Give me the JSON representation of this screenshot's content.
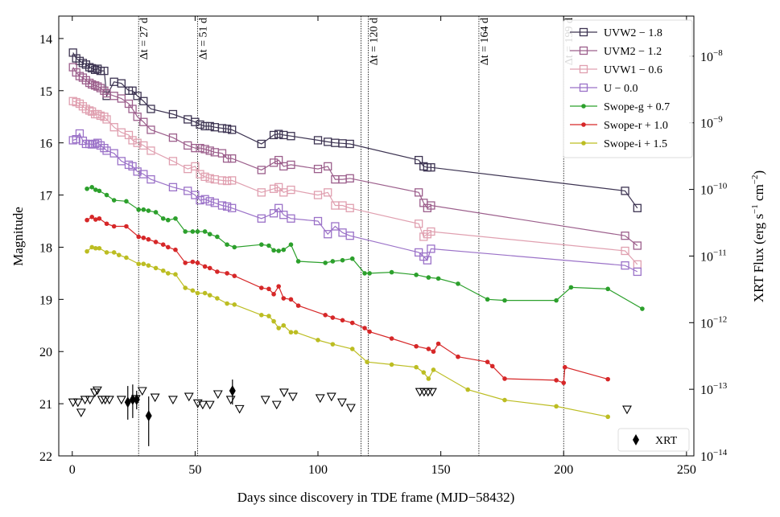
{
  "chart_data": {
    "type": "line",
    "x_label": "Days since discovery in TDE frame (MJD−58432)",
    "y_label": "Magnitude",
    "y2_label": "XRT Flux (erg s^−1 cm^−2)",
    "xlim": [
      -5.5,
      253
    ],
    "xticks": [
      0,
      50,
      100,
      150,
      200,
      250
    ],
    "ylim": [
      13.57,
      22
    ],
    "y_inverted": true,
    "yticks": [
      14,
      15,
      16,
      17,
      18,
      19,
      20,
      21,
      22
    ],
    "y2lim": [
      1e-14,
      4e-08
    ],
    "y2_log": true,
    "y2ticks": [
      {
        "value": 1e-08,
        "label": "10^−8"
      },
      {
        "value": 1e-09,
        "label": "10^−9"
      },
      {
        "value": 1e-10,
        "label": "10^−10"
      },
      {
        "value": 1e-11,
        "label": "10^−11"
      },
      {
        "value": 1e-12,
        "label": "10^−12"
      },
      {
        "value": 1e-13,
        "label": "10^−13"
      },
      {
        "value": 1e-14,
        "label": "10^−14"
      }
    ],
    "legend": "upper right",
    "vlines": [
      27,
      51,
      117.5,
      120.5,
      165.5,
      200
    ],
    "annotations": [
      {
        "x": 27,
        "text": "Δt = 27 d"
      },
      {
        "x": 51,
        "text": "Δt = 51 d"
      },
      {
        "x": 120.5,
        "text": "Δt = 120 d"
      },
      {
        "x": 165.5,
        "text": "Δt = 164 d"
      },
      {
        "x": 200,
        "text": "Δt = 199 d"
      }
    ],
    "series": [
      {
        "name": "UVW2 − 1.8",
        "color": "#3d3452",
        "marker": "square",
        "x": [
          0.3,
          1.6,
          3,
          4.3,
          5.6,
          7,
          8,
          9.3,
          10.3,
          11.5,
          13,
          14,
          17,
          20,
          23,
          24.5,
          26.5,
          29,
          32,
          41,
          47,
          50,
          52,
          54,
          56,
          58,
          61,
          63,
          65,
          77,
          82,
          84,
          86,
          89,
          100,
          104,
          107,
          110,
          113,
          141,
          143,
          144.5,
          146,
          225,
          230
        ],
        "values": [
          14.27,
          14.38,
          14.43,
          14.47,
          14.5,
          14.55,
          14.57,
          14.6,
          14.58,
          14.62,
          14.62,
          15.1,
          14.83,
          14.86,
          15.0,
          15.0,
          15.1,
          15.2,
          15.35,
          15.45,
          15.55,
          15.6,
          15.65,
          15.68,
          15.68,
          15.7,
          15.72,
          15.73,
          15.75,
          16.02,
          15.85,
          15.83,
          15.85,
          15.87,
          15.95,
          15.98,
          16.0,
          16.01,
          16.02,
          16.33,
          16.45,
          16.47,
          16.47,
          16.92,
          17.25
        ]
      },
      {
        "name": "UVM2 − 1.2",
        "color": "#9c5f8c",
        "marker": "square",
        "x": [
          0.3,
          1.6,
          3,
          4.3,
          5.6,
          7,
          8,
          9.3,
          10.3,
          11.5,
          13,
          14,
          17,
          20,
          23,
          24.5,
          26.5,
          29,
          32,
          41,
          47,
          50,
          52,
          54,
          56,
          58,
          61,
          63,
          65,
          77,
          82,
          84,
          86,
          89,
          100,
          104,
          107,
          110,
          113,
          141,
          143,
          144.5,
          146,
          225,
          230
        ],
        "values": [
          14.55,
          14.65,
          14.72,
          14.75,
          14.8,
          14.85,
          14.88,
          14.9,
          14.92,
          14.95,
          15.0,
          15.05,
          15.1,
          15.15,
          15.25,
          15.35,
          15.5,
          15.6,
          15.75,
          15.9,
          16.05,
          16.1,
          16.1,
          16.12,
          16.15,
          16.18,
          16.2,
          16.3,
          16.3,
          16.52,
          16.38,
          16.33,
          16.45,
          16.42,
          16.5,
          16.45,
          16.7,
          16.7,
          16.68,
          16.95,
          17.15,
          17.25,
          17.2,
          17.78,
          17.97
        ]
      },
      {
        "name": "UVW1 − 0.6",
        "color": "#e0a0b0",
        "marker": "square",
        "x": [
          0.3,
          1.6,
          3,
          4.3,
          5.6,
          7,
          8,
          9.3,
          10.3,
          11.5,
          13,
          14,
          17,
          20,
          23,
          24.5,
          26.5,
          29,
          32,
          41,
          47,
          50,
          52,
          54,
          56,
          58,
          61,
          63,
          65,
          77,
          82,
          84,
          86,
          89,
          100,
          104,
          107,
          110,
          113,
          141,
          143,
          144.5,
          146,
          225,
          230
        ],
        "values": [
          15.2,
          15.22,
          15.25,
          15.3,
          15.35,
          15.38,
          15.4,
          15.45,
          15.45,
          15.48,
          15.5,
          15.55,
          15.7,
          15.8,
          15.85,
          15.95,
          16.0,
          16.05,
          16.15,
          16.35,
          16.5,
          16.45,
          16.6,
          16.65,
          16.68,
          16.7,
          16.72,
          16.73,
          16.72,
          16.95,
          16.88,
          16.85,
          16.95,
          16.9,
          17.0,
          16.95,
          17.2,
          17.2,
          17.25,
          17.55,
          17.8,
          17.75,
          17.7,
          18.07,
          18.33
        ]
      },
      {
        "name": "U − 0.0",
        "color": "#9b72c8",
        "marker": "square",
        "x": [
          0.3,
          1.6,
          3,
          4.3,
          5.6,
          7,
          8,
          9.3,
          10.3,
          11.5,
          13,
          14,
          17,
          20,
          23,
          24.5,
          26.5,
          29,
          32,
          41,
          47,
          50,
          52,
          54,
          56,
          58,
          61,
          63,
          65,
          77,
          82,
          84,
          86,
          89,
          100,
          104,
          107,
          110,
          113,
          141,
          143,
          144.5,
          146,
          225,
          230
        ],
        "values": [
          15.95,
          15.93,
          15.82,
          15.96,
          16.02,
          16.02,
          16.03,
          16.02,
          16.0,
          16.05,
          16.1,
          16.15,
          16.2,
          16.35,
          16.42,
          16.45,
          16.55,
          16.6,
          16.7,
          16.85,
          16.92,
          17.0,
          17.1,
          17.08,
          17.12,
          17.15,
          17.2,
          17.22,
          17.25,
          17.45,
          17.35,
          17.25,
          17.38,
          17.45,
          17.5,
          17.75,
          17.6,
          17.72,
          17.78,
          18.1,
          18.18,
          18.25,
          18.03,
          18.35,
          18.47
        ]
      },
      {
        "name": "Swope-g + 0.7",
        "color": "#2ca02c",
        "marker": "circle",
        "x": [
          6,
          8,
          9.5,
          11,
          14,
          17,
          22,
          27,
          29,
          31,
          34,
          37,
          39,
          42,
          46,
          49,
          51,
          54,
          56,
          59,
          63,
          66,
          77,
          80,
          82,
          84,
          86,
          89,
          92,
          103,
          106,
          110,
          114,
          119,
          121,
          130,
          140,
          145,
          149,
          157,
          169,
          176,
          197,
          203,
          218,
          232
        ],
        "values": [
          16.88,
          16.85,
          16.9,
          16.92,
          17.0,
          17.1,
          17.12,
          17.28,
          17.28,
          17.3,
          17.33,
          17.45,
          17.48,
          17.45,
          17.7,
          17.7,
          17.7,
          17.7,
          17.75,
          17.8,
          17.95,
          18.0,
          17.95,
          17.97,
          18.06,
          18.07,
          18.05,
          17.95,
          18.27,
          18.3,
          18.27,
          18.25,
          18.22,
          18.5,
          18.5,
          18.48,
          18.53,
          18.58,
          18.6,
          18.7,
          19.0,
          19.02,
          19.02,
          18.77,
          18.8,
          19.18
        ]
      },
      {
        "name": "Swope-r + 1.0",
        "color": "#d62728",
        "marker": "circle",
        "x": [
          6,
          8,
          9.5,
          11,
          14,
          17,
          22,
          27,
          29,
          31,
          34,
          37,
          39,
          42,
          46,
          49,
          51,
          54,
          56,
          59,
          63,
          66,
          77,
          80,
          82,
          84,
          86,
          89,
          92,
          103,
          106,
          110,
          114,
          119,
          121,
          130,
          140,
          145,
          147,
          149,
          157,
          169,
          171,
          176,
          197,
          200,
          200.5,
          218
        ],
        "values": [
          17.48,
          17.42,
          17.47,
          17.45,
          17.55,
          17.6,
          17.6,
          17.8,
          17.82,
          17.85,
          17.9,
          17.95,
          18.0,
          18.05,
          18.3,
          18.28,
          18.3,
          18.37,
          18.4,
          18.47,
          18.5,
          18.55,
          18.78,
          18.8,
          18.9,
          18.75,
          18.98,
          19.0,
          19.12,
          19.3,
          19.35,
          19.4,
          19.45,
          19.55,
          19.62,
          19.75,
          19.9,
          19.95,
          20.0,
          19.85,
          20.1,
          20.2,
          20.28,
          20.52,
          20.55,
          20.6,
          20.3,
          20.53
        ]
      },
      {
        "name": "Swope-i + 1.5",
        "color": "#bcbd22",
        "marker": "circle",
        "x": [
          6,
          8,
          9.5,
          11,
          14,
          17,
          19,
          22,
          27,
          29,
          31,
          34,
          37,
          39,
          42,
          46,
          49,
          51,
          54,
          56,
          59,
          63,
          66,
          77,
          80,
          82,
          84,
          86,
          89,
          91,
          100,
          106,
          114,
          120,
          130,
          140,
          143,
          145,
          147,
          161,
          176,
          197,
          218
        ],
        "values": [
          18.08,
          18.0,
          18.02,
          18.02,
          18.1,
          18.1,
          18.15,
          18.2,
          18.32,
          18.32,
          18.35,
          18.4,
          18.45,
          18.5,
          18.52,
          18.78,
          18.83,
          18.88,
          18.88,
          18.92,
          18.98,
          19.08,
          19.1,
          19.3,
          19.32,
          19.42,
          19.55,
          19.5,
          19.63,
          19.63,
          19.78,
          19.86,
          19.95,
          20.2,
          20.25,
          20.3,
          20.4,
          20.52,
          20.35,
          20.73,
          20.93,
          21.05,
          21.25
        ]
      }
    ],
    "xrt_upper_limits": {
      "color": "#000000",
      "axis": "y2",
      "x": [
        0.3,
        2.3,
        3.6,
        5.2,
        7.2,
        9.2,
        10.2,
        12.1,
        13.4,
        15.1,
        20,
        25.9,
        28.5,
        33.7,
        41,
        47.5,
        51.1,
        53.1,
        56,
        59.3,
        64.5,
        68.1,
        78.6,
        83.2,
        86.2,
        89.8,
        100.9,
        105.5,
        109.8,
        113.4,
        141.5,
        143.2,
        144.8,
        146.5,
        225.8
      ],
      "values": [
        6.4e-14,
        6.4e-14,
        4.5e-14,
        7e-14,
        7e-14,
        9e-14,
        9.7e-14,
        7e-14,
        7e-14,
        7e-14,
        7e-14,
        7.2e-14,
        9.5e-14,
        7.6e-14,
        7e-14,
        7.8e-14,
        6.2e-14,
        5.9e-14,
        5.9e-14,
        8.5e-14,
        7e-14,
        5.1e-14,
        7e-14,
        5.9e-14,
        9e-14,
        7.8e-14,
        7.4e-14,
        7.8e-14,
        6.4e-14,
        5.3e-14,
        9.2e-14,
        9.2e-14,
        9.2e-14,
        9.2e-14,
        5e-14
      ]
    },
    "xrt": {
      "name": "XRT",
      "color": "#000000",
      "axis": "y2",
      "legend": "lower right",
      "x": [
        22.6,
        24.6,
        26.2,
        31.1,
        65.2
      ],
      "values": [
        6.4e-14,
        7e-14,
        7e-14,
        4e-14,
        9.5e-14
      ],
      "low": [
        3.5e-14,
        3.7e-14,
        5e-14,
        1.4e-14,
        5.9e-14
      ],
      "high": [
        1.12e-13,
        1.18e-13,
        9.5e-14,
        7.8e-14,
        1.4e-13
      ]
    }
  }
}
